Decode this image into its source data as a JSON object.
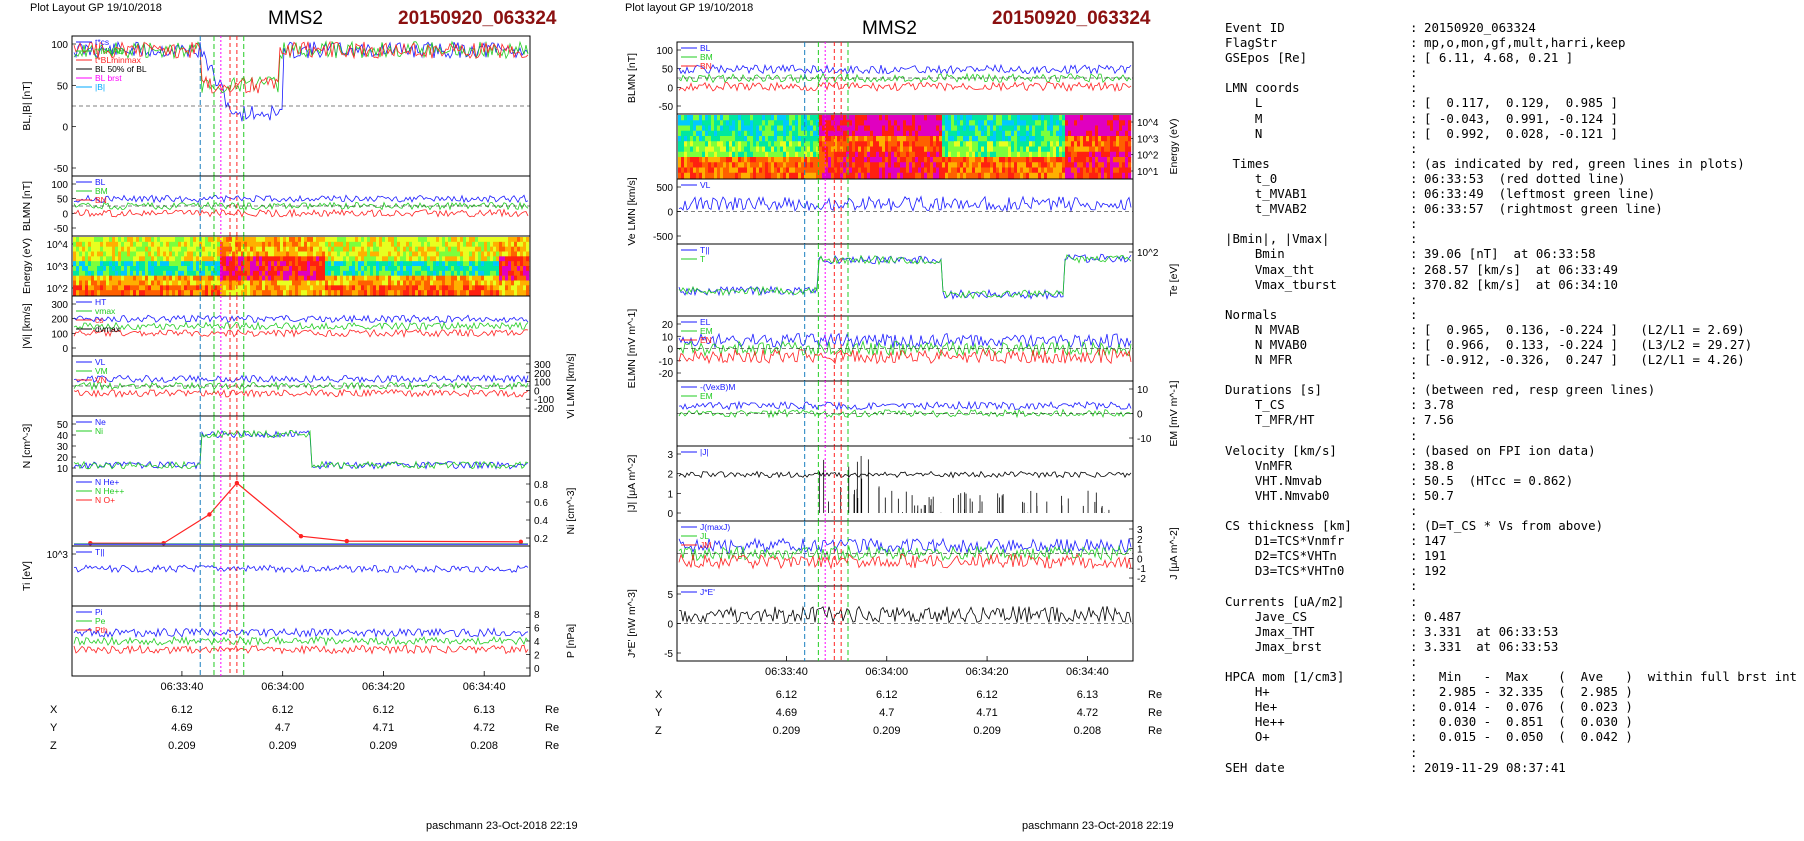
{
  "left_panel": {
    "header": "Plot Layout GP 19/10/2018",
    "title": "MMS2",
    "event": "20150920_063324",
    "footer": "paschmann 23-Oct-2018 22:19",
    "time_ticks": [
      "06:33:40",
      "06:34:00",
      "06:34:20",
      "06:34:40"
    ],
    "coord_rows": [
      {
        "label": "X",
        "vals": [
          "6.12",
          "6.12",
          "6.12",
          "6.13"
        ],
        "unit": "Re"
      },
      {
        "label": "Y",
        "vals": [
          "4.69",
          "4.7",
          "4.71",
          "4.72"
        ],
        "unit": "Re"
      },
      {
        "label": "Z",
        "vals": [
          "0.209",
          "0.209",
          "0.209",
          "0.208"
        ],
        "unit": "Re"
      }
    ],
    "panels": [
      {
        "id": "bl",
        "ylabel": "BL,|B| [nT]",
        "ticks": [
          "100",
          "50",
          "0",
          "-50"
        ],
        "legend": [
          "t*cs",
          "t*MVAB",
          "t*BLminmax",
          "BL 50% of BL",
          "BL brst",
          "|B|"
        ]
      },
      {
        "id": "blmn",
        "ylabel": "BLMN [nT]",
        "ticks": [
          "100",
          "50",
          "0",
          "-50"
        ],
        "legend": [
          "BL",
          "BM",
          "BN"
        ]
      },
      {
        "id": "ispec",
        "ylabel": "Energy (eV)",
        "ticks": [
          "10^4",
          "10^3",
          "10^2"
        ],
        "legend": []
      },
      {
        "id": "vi",
        "ylabel": "|Vi| [km/s]",
        "ticks": [
          "300",
          "200",
          "100",
          "0"
        ],
        "legend": [
          "HT",
          "vmax",
          "cs",
          "dvmax"
        ]
      },
      {
        "id": "vilmn",
        "ylabel": "Vi LMN [km/s]",
        "ticks": [
          "300",
          "200",
          "100",
          "0",
          "-100",
          "-200"
        ],
        "legend": [
          "VL",
          "VM",
          "VN"
        ]
      },
      {
        "id": "n",
        "ylabel": "N [cm^-3]",
        "ticks": [
          "50",
          "40",
          "30",
          "20",
          "10"
        ],
        "legend": [
          "Ne",
          "Ni"
        ]
      },
      {
        "id": "ni",
        "ylabel": "Ni [cm^-3]",
        "ticks": [
          "0.8",
          "0.6",
          "0.4",
          "0.2"
        ],
        "legend": [
          "N He+",
          "N He++",
          "N O+"
        ]
      },
      {
        "id": "ti",
        "ylabel": "Ti [eV]",
        "ticks": [
          "10^3"
        ],
        "legend": [
          "T||"
        ]
      },
      {
        "id": "p",
        "ylabel": "P [nPa]",
        "ticks": [
          "8",
          "6",
          "4",
          "2",
          "0"
        ],
        "legend": [
          "Pi",
          "Pe",
          "Pth"
        ]
      }
    ]
  },
  "right_panel": {
    "header": "Plot layout GP 19/10/2018",
    "title": "MMS2",
    "event": "20150920_063324",
    "footer": "paschmann 23-Oct-2018 22:19",
    "time_ticks": [
      "06:33:40",
      "06:34:00",
      "06:34:20",
      "06:34:40"
    ],
    "coord_rows": [
      {
        "label": "X",
        "vals": [
          "6.12",
          "6.12",
          "6.12",
          "6.13"
        ],
        "unit": "Re"
      },
      {
        "label": "Y",
        "vals": [
          "4.69",
          "4.7",
          "4.71",
          "4.72"
        ],
        "unit": "Re"
      },
      {
        "label": "Z",
        "vals": [
          "0.209",
          "0.209",
          "0.209",
          "0.208"
        ],
        "unit": "Re"
      }
    ],
    "panels": [
      {
        "id": "blmn",
        "ylabel": "BLMN [nT]",
        "ticks": [
          "100",
          "50",
          "0",
          "-50"
        ],
        "legend": [
          "BL",
          "BM",
          "BN"
        ]
      },
      {
        "id": "espec",
        "ylabel": "Energy (eV)",
        "ticks": [
          "10^4",
          "10^3",
          "10^2",
          "10^1"
        ],
        "legend": []
      },
      {
        "id": "ve",
        "ylabel": "Ve LMN [km/s]",
        "ticks": [
          "500",
          "0",
          "-500"
        ],
        "legend": [
          "VL"
        ]
      },
      {
        "id": "te",
        "ylabel": "Te [eV]",
        "ticks": [
          "10^2"
        ],
        "legend": [
          "T||",
          "T"
        ]
      },
      {
        "id": "e",
        "ylabel": "ELMN [mV m^-1]",
        "ticks": [
          "20",
          "10",
          "0",
          "-10",
          "-20"
        ],
        "legend": [
          "EL",
          "EM",
          "EN"
        ]
      },
      {
        "id": "em",
        "ylabel": "EM [mV m^-1]",
        "ticks": [
          "10",
          "0",
          "-10"
        ],
        "legend": [
          "-(VexB)M",
          "EM"
        ]
      },
      {
        "id": "j",
        "ylabel": "|J| [μA m^-2]",
        "ticks": [
          "3",
          "2",
          "1",
          "0"
        ],
        "legend": [
          "|J|"
        ]
      },
      {
        "id": "jlmn",
        "ylabel": "J [μA m^-2]",
        "ticks": [
          "3",
          "2",
          "1",
          "0",
          "-1",
          "-2"
        ],
        "legend": [
          "J(maxJ)",
          "JL",
          "JM"
        ]
      },
      {
        "id": "je",
        "ylabel": "J*E' [nW m^-3]",
        "ticks": [
          "5",
          "0",
          "-5"
        ],
        "legend": [
          "J*E'"
        ]
      }
    ]
  },
  "info": [
    {
      "k": "Event ID",
      "v": "20150920_063324"
    },
    {
      "k": "FlagStr",
      "v": "mp,o,mon,gf,mult,harri,keep"
    },
    {
      "k": "GSEpos [Re]",
      "v": "[ 6.11, 4.68, 0.21 ]"
    },
    {
      "k": "",
      "v": ""
    },
    {
      "k": "LMN coords",
      "v": ""
    },
    {
      "k": "    L",
      "v": "[  0.117,  0.129,  0.985 ]"
    },
    {
      "k": "    M",
      "v": "[ -0.043,  0.991, -0.124 ]"
    },
    {
      "k": "    N",
      "v": "[  0.992,  0.028, -0.121 ]"
    },
    {
      "k": "",
      "v": ""
    },
    {
      "k": " Times",
      "v": "(as indicated by red, green lines in plots)"
    },
    {
      "k": "    t_0",
      "v": "06:33:53  (red dotted line)"
    },
    {
      "k": "    t_MVAB1",
      "v": "06:33:49  (leftmost green line)"
    },
    {
      "k": "    t_MVAB2",
      "v": "06:33:57  (rightmost green line)"
    },
    {
      "k": "",
      "v": ""
    },
    {
      "k": "|Bmin|, |Vmax|",
      "v": ""
    },
    {
      "k": "    Bmin",
      "v": "39.06 [nT]  at 06:33:58"
    },
    {
      "k": "    Vmax_tht",
      "v": "268.57 [km/s]  at 06:33:49"
    },
    {
      "k": "    Vmax_tburst",
      "v": "370.82 [km/s]  at 06:34:10"
    },
    {
      "k": "",
      "v": ""
    },
    {
      "k": "Normals",
      "v": ""
    },
    {
      "k": "    N MVAB",
      "v": "[  0.965,  0.136, -0.224 ]   (L2/L1 = 2.69)"
    },
    {
      "k": "    N MVAB0",
      "v": "[  0.966,  0.133, -0.224 ]   (L3/L2 = 29.27)"
    },
    {
      "k": "    N MFR",
      "v": "[ -0.912, -0.326,  0.247 ]   (L2/L1 = 4.26)"
    },
    {
      "k": "",
      "v": ""
    },
    {
      "k": "Durations [s]",
      "v": "(between red, resp green lines)"
    },
    {
      "k": "    T_CS",
      "v": "3.78"
    },
    {
      "k": "    T_MFR/HT",
      "v": "7.56"
    },
    {
      "k": "",
      "v": ""
    },
    {
      "k": "Velocity [km/s]",
      "v": "(based on FPI ion data)"
    },
    {
      "k": "    VnMFR",
      "v": "38.8"
    },
    {
      "k": "    VHT.Nmvab",
      "v": "50.5  (HTcc = 0.862)"
    },
    {
      "k": "    VHT.Nmvab0",
      "v": "50.7"
    },
    {
      "k": "",
      "v": ""
    },
    {
      "k": "CS thickness [km]",
      "v": "(D=T_CS * Vs from above)"
    },
    {
      "k": "    D1=TCS*Vnmfr",
      "v": "147"
    },
    {
      "k": "    D2=TCS*VHTn",
      "v": "191"
    },
    {
      "k": "    D3=TCS*VHTn0",
      "v": "192"
    },
    {
      "k": "",
      "v": ""
    },
    {
      "k": "Currents [uA/m2]",
      "v": ""
    },
    {
      "k": "    Jave_CS",
      "v": "0.487"
    },
    {
      "k": "    Jmax_THT",
      "v": "3.331  at 06:33:53"
    },
    {
      "k": "    Jmax_brst",
      "v": "3.331  at 06:33:53"
    },
    {
      "k": "",
      "v": ""
    },
    {
      "k": "HPCA mom [1/cm3]",
      "v": "  Min   -  Max    (  Ave   )  within full brst int"
    },
    {
      "k": "    H+",
      "v": "  2.985 - 32.335  (  2.985 )"
    },
    {
      "k": "    He+",
      "v": "  0.014 -  0.076  (  0.023 )"
    },
    {
      "k": "    He++",
      "v": "  0.030 -  0.851  (  0.030 )"
    },
    {
      "k": "    O+",
      "v": "  0.015 -  0.050  (  0.042 )"
    },
    {
      "k": "",
      "v": ""
    },
    {
      "k": "SEH date",
      "v": "2019-11-29 08:37:41"
    }
  ],
  "chart_data": [
    {
      "type": "line",
      "title": "MMS2",
      "panel": "left",
      "x_ticks": [
        "06:33:40",
        "06:34:00",
        "06:34:20",
        "06:34:40"
      ],
      "series": [
        {
          "name": "BL brst",
          "unit": "nT",
          "values": [
            115,
            115,
            110,
            0,
            -35,
            -30,
            60,
            100,
            105,
            104,
            103
          ]
        },
        {
          "name": "|B|",
          "unit": "nT",
          "values": [
            115,
            115,
            112,
            40,
            45,
            60,
            85,
            105,
            105,
            104,
            103
          ]
        },
        {
          "name": "N He++",
          "unit": "cm^-3",
          "values": [
            0.0,
            0.0,
            0.05,
            0.55,
            0.8,
            0.05,
            0.03,
            0.02,
            0.02,
            0.02,
            0.02
          ]
        }
      ]
    },
    {
      "type": "line",
      "title": "MMS2",
      "panel": "right",
      "x_ticks": [
        "06:33:40",
        "06:34:00",
        "06:34:20",
        "06:34:40"
      ],
      "series": [
        {
          "name": "|J|",
          "unit": "μA m^-2",
          "values": [
            0.1,
            0.1,
            0.2,
            3.3,
            1.0,
            0.6,
            0.3,
            0.3,
            0.2,
            0.2,
            0.2
          ]
        }
      ]
    }
  ]
}
